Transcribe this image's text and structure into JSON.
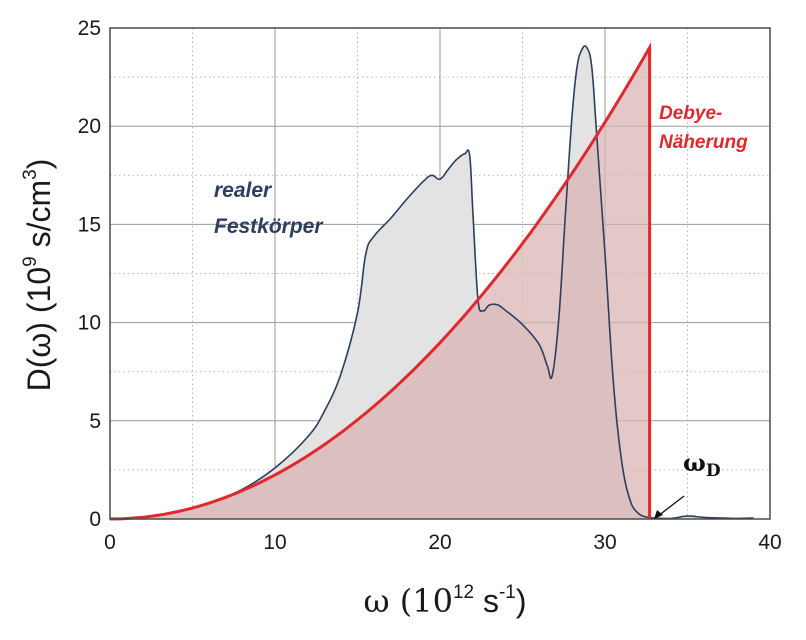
{
  "chart_data": {
    "type": "area",
    "xlabel": {
      "main": "ω  (10",
      "sup": "12",
      "mid": " s",
      "sup2": "-1",
      "end": ")"
    },
    "ylabel": {
      "main": "D(ω)  (10",
      "sup": "9",
      "mid": " s/cm",
      "sup2": "3",
      "end": ")"
    },
    "xlim": [
      0,
      40
    ],
    "ylim": [
      0,
      25
    ],
    "xticks": [
      "0",
      "10",
      "20",
      "30",
      "40"
    ],
    "yticks": [
      "0",
      "5",
      "10",
      "15",
      "20",
      "25"
    ],
    "grid": true,
    "series": [
      {
        "name": "realer Festkörper",
        "color": "#2d3e5e",
        "fill": "#e3e3e3",
        "x": [
          0,
          2,
          4,
          6,
          8,
          10,
          12,
          13,
          14,
          15,
          15.5,
          16,
          17,
          18,
          19,
          19.5,
          20,
          20.5,
          21,
          21.5,
          21.8,
          22,
          22.3,
          22.6,
          23,
          23.5,
          24,
          25,
          26,
          26.5,
          26.8,
          27.2,
          27.6,
          28,
          28.3,
          28.6,
          28.9,
          29.2,
          29.5,
          30,
          30.5,
          31,
          31.5,
          32,
          32.5,
          33,
          34,
          35,
          36,
          37,
          38,
          39
        ],
        "y": [
          0,
          0.1,
          0.35,
          0.8,
          1.5,
          2.6,
          4.2,
          5.5,
          7.4,
          10.5,
          13.5,
          14.4,
          15.3,
          16.3,
          17.2,
          17.5,
          17.3,
          17.8,
          18.3,
          18.6,
          18.5,
          15.5,
          11.2,
          10.6,
          10.9,
          10.9,
          10.6,
          9.9,
          8.9,
          7.8,
          7.3,
          10.2,
          15.5,
          20.5,
          23,
          23.9,
          24.0,
          23.0,
          19.5,
          13.5,
          7.0,
          3.0,
          1.0,
          0.3,
          0.1,
          0.05,
          0.03,
          0.15,
          0.08,
          0.05,
          0.03,
          0.05
        ]
      },
      {
        "name": "Debye-Näherung",
        "color": "#e0282f",
        "fill": "#d9b1b2",
        "type": "curve",
        "formula": "y = 24 * (x / 32.7)^2 for 0 ≤ x ≤ 32.7, vertical drop at ω_D",
        "ymax": 24,
        "cutoff_x": 32.7
      }
    ],
    "annotations": {
      "real_line1": "realer",
      "real_line2": "Festkörper",
      "debye_line1": "Debye-",
      "debye_line2": "Näherung",
      "omega_d": "ω",
      "omega_d_sub": "D"
    }
  }
}
